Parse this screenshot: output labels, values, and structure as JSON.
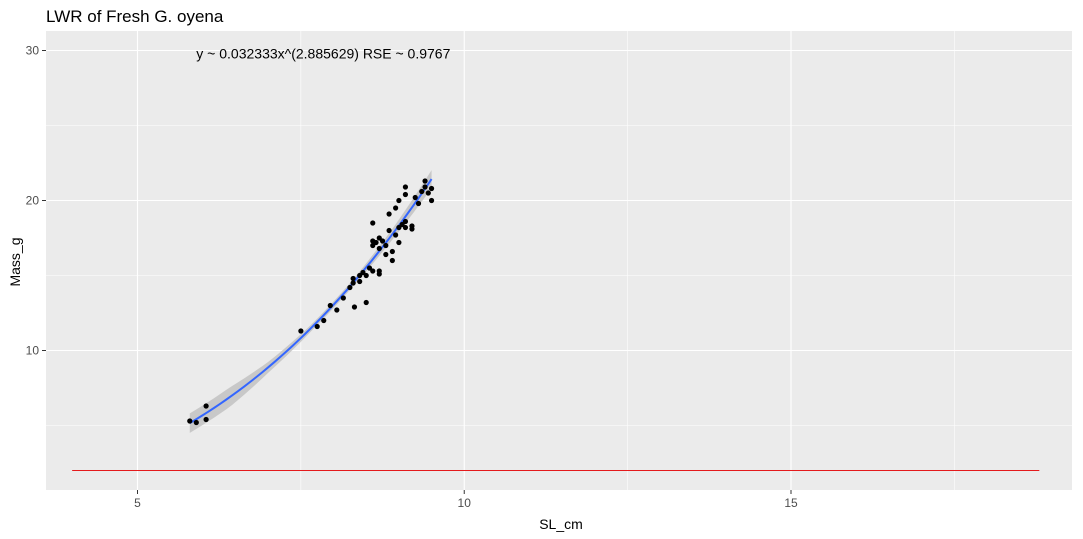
{
  "chart_data": {
    "type": "scatter",
    "title": "LWR of Fresh G. oyena",
    "xlabel": "SL_cm",
    "ylabel": "Mass_g",
    "xlim": [
      3.6,
      19.3
    ],
    "ylim": [
      0.7,
      31.3
    ],
    "xticks": [
      5,
      10,
      15
    ],
    "yticks": [
      10,
      20,
      30
    ],
    "grid": true,
    "legend": "none",
    "annotation": {
      "text": "y ~ 0.032333x^(2.885629)  RSE ~ 0.9767",
      "x": 5.9,
      "y": 29.8
    },
    "fit": {
      "a": 0.032333,
      "b": 2.885629,
      "x_range": [
        5.8,
        9.5
      ],
      "se_band_halfwidth": [
        0.65,
        0.65,
        0.35,
        0.22,
        0.22,
        0.35,
        0.6
      ]
    },
    "hline": {
      "y": 2.0,
      "x_range": [
        4.0,
        18.8
      ],
      "color": "#e41a1c"
    },
    "colors": {
      "panel": "#ebebeb",
      "grid": "#ffffff",
      "points": "#000000",
      "fit_line": "#3366ff",
      "se_band": "#c4c4c4"
    },
    "points": [
      [
        5.8,
        5.3
      ],
      [
        5.9,
        5.2
      ],
      [
        6.05,
        6.3
      ],
      [
        6.05,
        5.4
      ],
      [
        7.5,
        11.3
      ],
      [
        7.75,
        11.6
      ],
      [
        7.85,
        12.0
      ],
      [
        7.95,
        13.0
      ],
      [
        8.05,
        12.7
      ],
      [
        8.15,
        13.5
      ],
      [
        8.25,
        14.2
      ],
      [
        8.3,
        14.5
      ],
      [
        8.3,
        14.8
      ],
      [
        8.32,
        12.9
      ],
      [
        8.4,
        14.6
      ],
      [
        8.4,
        15.0
      ],
      [
        8.45,
        15.2
      ],
      [
        8.5,
        15.0
      ],
      [
        8.5,
        13.2
      ],
      [
        8.55,
        15.5
      ],
      [
        8.6,
        15.3
      ],
      [
        8.6,
        17.0
      ],
      [
        8.6,
        17.3
      ],
      [
        8.6,
        18.5
      ],
      [
        8.65,
        17.2
      ],
      [
        8.7,
        16.8
      ],
      [
        8.7,
        17.5
      ],
      [
        8.7,
        15.1
      ],
      [
        8.7,
        15.3
      ],
      [
        8.75,
        17.3
      ],
      [
        8.8,
        16.4
      ],
      [
        8.8,
        17.0
      ],
      [
        8.85,
        18.0
      ],
      [
        8.85,
        19.1
      ],
      [
        8.9,
        16.6
      ],
      [
        8.9,
        16.0
      ],
      [
        8.95,
        17.7
      ],
      [
        8.95,
        19.5
      ],
      [
        9.0,
        20.0
      ],
      [
        9.0,
        17.2
      ],
      [
        9.0,
        18.2
      ],
      [
        9.05,
        18.4
      ],
      [
        9.1,
        18.6
      ],
      [
        9.1,
        18.2
      ],
      [
        9.1,
        20.4
      ],
      [
        9.1,
        20.9
      ],
      [
        9.2,
        18.1
      ],
      [
        9.2,
        18.3
      ],
      [
        9.25,
        20.2
      ],
      [
        9.3,
        19.8
      ],
      [
        9.35,
        20.6
      ],
      [
        9.4,
        20.9
      ],
      [
        9.4,
        21.3
      ],
      [
        9.45,
        20.5
      ],
      [
        9.5,
        20.0
      ],
      [
        9.5,
        20.8
      ]
    ]
  }
}
